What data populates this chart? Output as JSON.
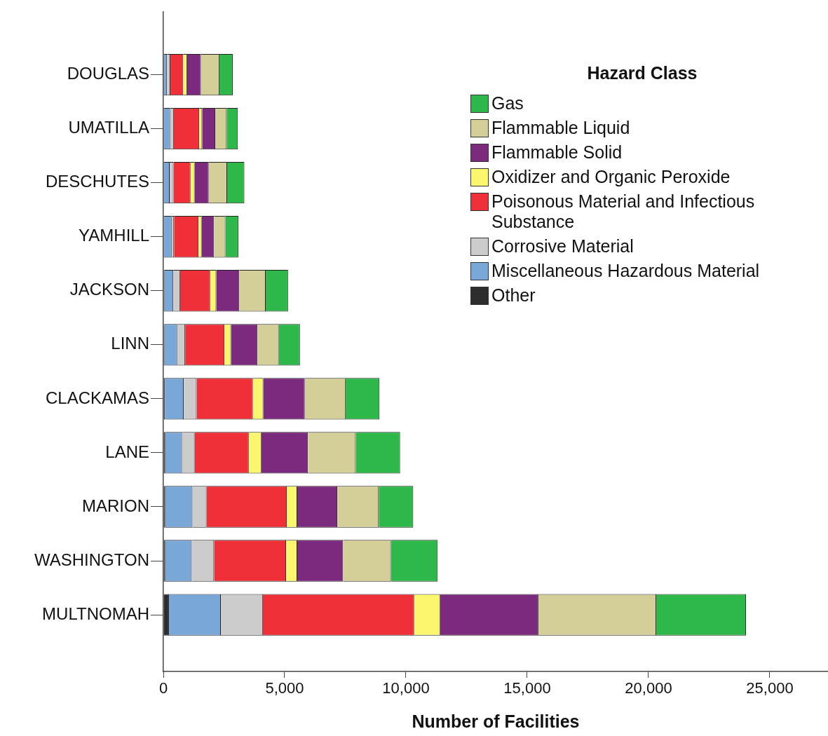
{
  "chart_data": {
    "type": "bar",
    "orientation": "horizontal",
    "stacked": true,
    "xlabel": "Number of Facilities",
    "legend_title": "Hazard Class",
    "legend": "top right",
    "grid": false,
    "categories": [
      "DOUGLAS",
      "UMATILLA",
      "DESCHUTES",
      "YAMHILL",
      "JACKSON",
      "LINN",
      "CLACKAMAS",
      "LANE",
      "MARION",
      "WASHINGTON",
      "MULTNOMAH"
    ],
    "xlim": [
      0,
      27400
    ],
    "xticks": [
      0,
      {
        "value": 5000,
        "label": "5,000"
      },
      {
        "value": 10000,
        "label": "10,000"
      },
      {
        "value": 15000,
        "label": "15,000"
      },
      {
        "value": 20000,
        "label": "20,000"
      },
      {
        "value": 25000,
        "label": "25,000"
      }
    ],
    "series": [
      {
        "name": "Other",
        "color": "#2d2d2d",
        "values": [
          30,
          30,
          30,
          30,
          50,
          50,
          60,
          80,
          80,
          80,
          230
        ]
      },
      {
        "name": "Miscellaneous Hazardous Material",
        "color": "#79a8d8",
        "values": [
          120,
          250,
          230,
          310,
          360,
          520,
          780,
          690,
          1120,
          1090,
          2140
        ]
      },
      {
        "name": "Corrosive Material",
        "color": "#cccccc",
        "values": [
          140,
          150,
          160,
          100,
          280,
          330,
          530,
          520,
          580,
          920,
          1730
        ]
      },
      {
        "name": "Poisonous Material and Infectious Substance",
        "color": "#ef3038",
        "values": [
          530,
          1050,
          700,
          1010,
          1240,
          1620,
          2320,
          2230,
          3310,
          2970,
          6240
        ]
      },
      {
        "name": "Oxidizer and Organic Peroxide",
        "color": "#faf76e",
        "values": [
          160,
          120,
          170,
          130,
          250,
          270,
          430,
          520,
          430,
          460,
          1070
        ]
      },
      {
        "name": "Flammable Solid",
        "color": "#7b2a7d",
        "values": [
          570,
          540,
          580,
          510,
          950,
          1090,
          1710,
          1920,
          1650,
          1890,
          4050
        ]
      },
      {
        "name": "Flammable Liquid",
        "color": "#d4cf98",
        "values": [
          760,
          470,
          760,
          470,
          1090,
          880,
          1680,
          1970,
          1710,
          1970,
          4860
        ]
      },
      {
        "name": "Gas",
        "color": "#2fb84a",
        "values": [
          550,
          460,
          710,
          530,
          920,
          870,
          1400,
          1830,
          1420,
          1930,
          3700
        ]
      }
    ]
  }
}
